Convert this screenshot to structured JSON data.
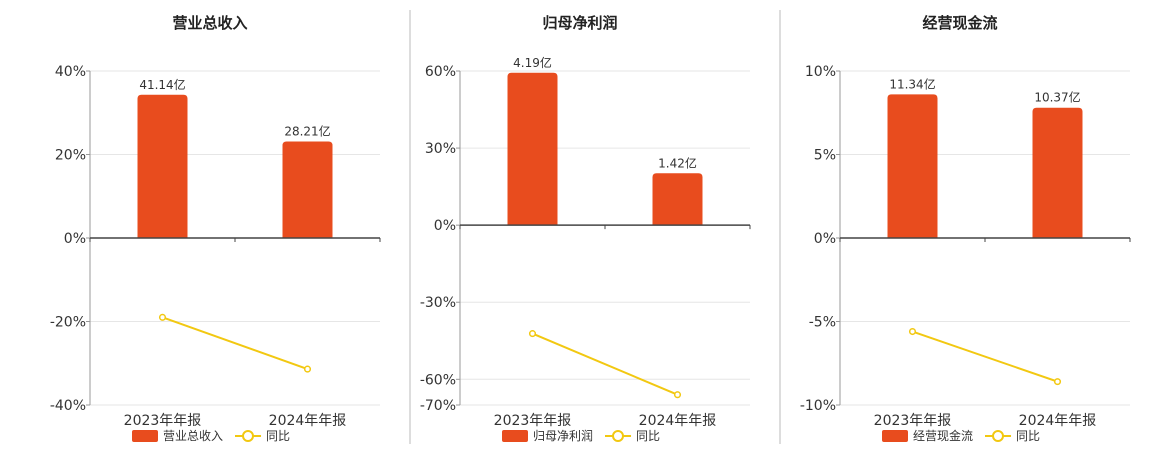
{
  "chart_data": [
    {
      "type": "bar",
      "title": "营业总收入",
      "categories": [
        "2023年年报",
        "2024年年报"
      ],
      "series": [
        {
          "name": "营业总收入",
          "type": "bar",
          "color": "#e84c1e",
          "values": [
            34.3,
            23.1
          ],
          "labels": [
            "41.14亿",
            "28.21亿"
          ]
        },
        {
          "name": "同比",
          "type": "line",
          "color": "#f2c811",
          "values": [
            -19.0,
            -31.4
          ]
        }
      ],
      "ylim": [
        -40,
        40
      ],
      "yticks": [
        40,
        20,
        0,
        -20,
        -40
      ],
      "ytick_labels": [
        "40%",
        "20%",
        "0%",
        "-20%",
        "-40%"
      ],
      "grid": true,
      "legend": "bottom"
    },
    {
      "type": "bar",
      "title": "归母净利润",
      "categories": [
        "2023年年报",
        "2024年年报"
      ],
      "series": [
        {
          "name": "归母净利润",
          "type": "bar",
          "color": "#e84c1e",
          "values": [
            59.3,
            20.2
          ],
          "labels": [
            "4.19亿",
            "1.42亿"
          ]
        },
        {
          "name": "同比",
          "type": "line",
          "color": "#f2c811",
          "values": [
            -42.2,
            -66.0
          ]
        }
      ],
      "ylim": [
        -70,
        60
      ],
      "yticks": [
        60,
        30,
        0,
        -30,
        -60,
        -70
      ],
      "ytick_labels": [
        "60%",
        "30%",
        "0%",
        "-30%",
        "-60%",
        "-70%"
      ],
      "grid": true,
      "legend": "bottom"
    },
    {
      "type": "bar",
      "title": "经营现金流",
      "categories": [
        "2023年年报",
        "2024年年报"
      ],
      "series": [
        {
          "name": "经营现金流",
          "type": "bar",
          "color": "#e84c1e",
          "values": [
            8.6,
            7.8
          ],
          "labels": [
            "11.34亿",
            "10.37亿"
          ]
        },
        {
          "name": "同比",
          "type": "line",
          "color": "#f2c811",
          "values": [
            -5.6,
            -8.6
          ]
        }
      ],
      "ylim": [
        -10,
        10
      ],
      "yticks": [
        10,
        5,
        0,
        -5,
        -10
      ],
      "ytick_labels": [
        "10%",
        "5%",
        "0%",
        "-5%",
        "-10%"
      ],
      "grid": true,
      "legend": "bottom"
    }
  ]
}
